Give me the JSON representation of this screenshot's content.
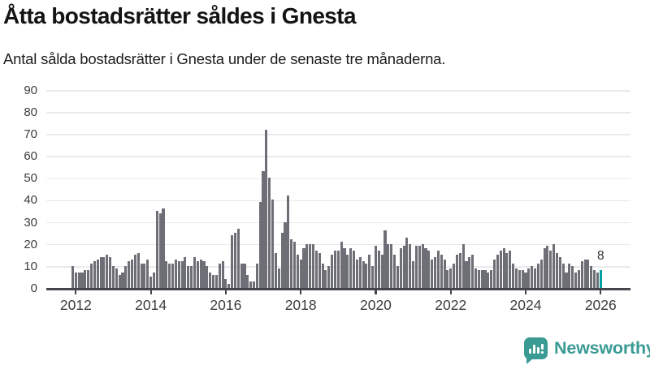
{
  "header": {
    "title": "Åtta bostadsrätter såldes i Gnesta",
    "subtitle": "Antal sålda bostadsrätter i Gnesta under de senaste tre månaderna."
  },
  "footer": {
    "brand": "Newsworthy",
    "brand_color": "#3a9a94",
    "logo_icon": "bar-chart-speech-bubble"
  },
  "chart_data": {
    "type": "bar",
    "title": "Åtta bostadsrätter såldes i Gnesta",
    "subtitle": "Antal sålda bostadsrätter i Gnesta under de senaste tre månaderna.",
    "start_month": "2011-12",
    "end_month": "2026-01",
    "frequency": "monthly",
    "values": [
      10,
      7,
      7,
      7,
      8,
      8,
      11,
      12,
      13,
      14,
      14,
      15,
      14,
      10,
      9,
      6,
      7,
      10,
      12,
      13,
      15,
      16,
      11,
      11,
      13,
      5,
      7,
      35,
      34,
      36,
      12,
      11,
      11,
      13,
      12,
      12,
      14,
      10,
      10,
      14,
      12,
      13,
      12,
      10,
      7,
      6,
      6,
      11,
      12,
      4,
      2,
      24,
      25,
      27,
      11,
      11,
      6,
      3,
      3,
      11,
      39,
      53,
      72,
      50,
      40,
      16,
      9,
      25,
      30,
      42,
      22,
      21,
      15,
      13,
      18,
      20,
      20,
      20,
      17,
      16,
      11,
      8,
      10,
      15,
      17,
      17,
      21,
      18,
      15,
      18,
      17,
      13,
      14,
      12,
      11,
      15,
      10,
      19,
      17,
      15,
      26,
      20,
      20,
      15,
      10,
      18,
      19,
      23,
      20,
      12,
      19,
      19,
      20,
      18,
      17,
      13,
      14,
      17,
      15,
      13,
      8,
      9,
      11,
      15,
      16,
      20,
      12,
      14,
      15,
      9,
      8,
      8,
      8,
      7,
      8,
      13,
      15,
      17,
      18,
      16,
      17,
      11,
      9,
      8,
      8,
      7,
      9,
      10,
      9,
      11,
      13,
      18,
      19,
      17,
      20,
      16,
      14,
      11,
      7,
      11,
      10,
      7,
      8,
      12,
      13,
      13,
      10,
      8,
      7,
      8
    ],
    "highlight": {
      "index": 169,
      "label": "8",
      "color": "#00a1a3"
    },
    "bar_color": "#6e6e76",
    "ylim": [
      0,
      90
    ],
    "y_ticks": [
      0,
      10,
      20,
      30,
      40,
      50,
      60,
      70,
      80,
      90
    ],
    "x_ticks": [
      2012,
      2014,
      2016,
      2018,
      2020,
      2022,
      2024,
      2026
    ],
    "grid": true,
    "legend": "none"
  }
}
